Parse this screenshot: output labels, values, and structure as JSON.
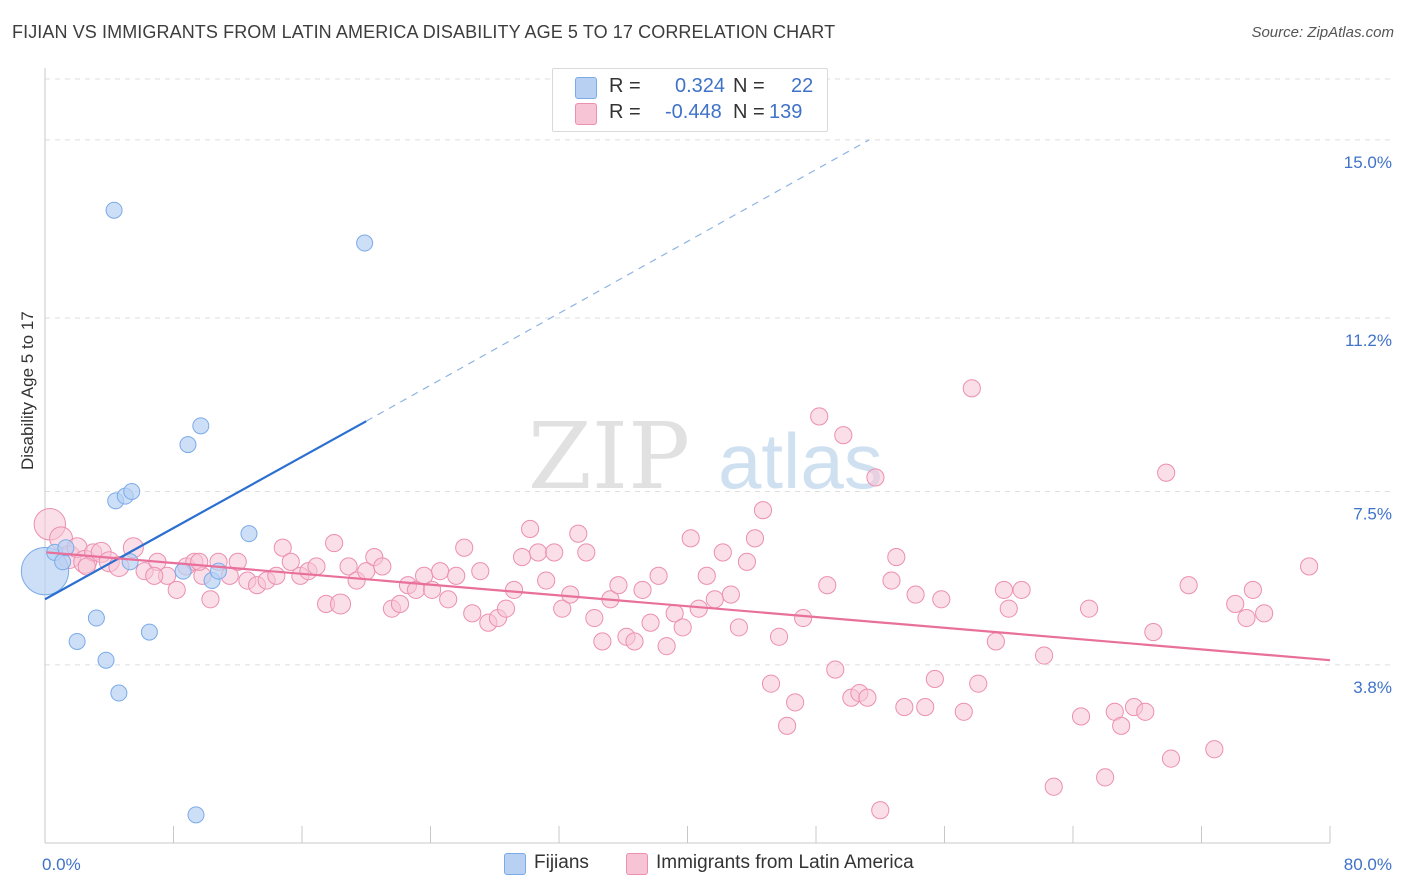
{
  "title": "FIJIAN VS IMMIGRANTS FROM LATIN AMERICA DISABILITY AGE 5 TO 17 CORRELATION CHART",
  "source": "Source: ZipAtlas.com",
  "watermark": {
    "zip": "ZIP",
    "atlas": "atlas"
  },
  "legend": {
    "r_label": "R =",
    "n_label": "N =",
    "series1": {
      "r": "0.324",
      "n": "22"
    },
    "series2": {
      "r": "-0.448",
      "n": "139"
    }
  },
  "bottom_legend": {
    "series1": "Fijians",
    "series2": "Immigrants from Latin America"
  },
  "chart_data": {
    "type": "scatter",
    "title": "FIJIAN VS IMMIGRANTS FROM LATIN AMERICA DISABILITY AGE 5 TO 17 CORRELATION CHART",
    "xlabel": "",
    "ylabel": "Disability Age 5 to 17",
    "xlim": [
      0,
      80
    ],
    "ylim": [
      0,
      16.3
    ],
    "x_tick_labels": [
      "0.0%",
      "80.0%"
    ],
    "y_ticks": [
      3.8,
      7.5,
      11.2,
      15.0
    ],
    "y_tick_labels": [
      "3.8%",
      "7.5%",
      "11.2%",
      "15.0%"
    ],
    "grid": true,
    "legend_position": "top-center",
    "colors": {
      "series1": "#7aaae8",
      "series1_fill": "#b8d1f3",
      "series1_line": "#2b6fd0",
      "series2": "#ec8fb0",
      "series2_fill": "#f7c4d6",
      "series2_line": "#e8709a",
      "tick_text": "#3f72c8"
    },
    "series": [
      {
        "name": "Fijians",
        "trend": {
          "x": [
            0,
            20.0
          ],
          "y": [
            5.2,
            9.0
          ],
          "dashed_to": [
            51.3,
            15.0
          ]
        },
        "points": [
          [
            0.0,
            5.8,
            26
          ],
          [
            0.6,
            6.2,
            10
          ],
          [
            1.1,
            6.0,
            10
          ],
          [
            1.3,
            6.3,
            10
          ],
          [
            3.2,
            4.8,
            10
          ],
          [
            2.0,
            4.3,
            10
          ],
          [
            3.8,
            3.9,
            10
          ],
          [
            4.3,
            13.5,
            10
          ],
          [
            4.4,
            7.3,
            10
          ],
          [
            4.6,
            3.2,
            10
          ],
          [
            5.0,
            7.4,
            10
          ],
          [
            5.4,
            7.5,
            10
          ],
          [
            5.3,
            6.0,
            10
          ],
          [
            6.5,
            4.5,
            10
          ],
          [
            8.6,
            5.8,
            10
          ],
          [
            8.9,
            8.5,
            10
          ],
          [
            9.4,
            0.6,
            10
          ],
          [
            9.7,
            8.9,
            10
          ],
          [
            10.4,
            5.6,
            10
          ],
          [
            10.8,
            5.8,
            10
          ],
          [
            12.7,
            6.6,
            10
          ],
          [
            19.9,
            12.8,
            10
          ]
        ]
      },
      {
        "name": "Immigrants from Latin America",
        "trend": {
          "x": [
            0.1,
            80.0
          ],
          "y": [
            6.2,
            3.9
          ]
        },
        "points": [
          [
            0.3,
            6.8,
            22
          ],
          [
            1.0,
            6.5,
            16
          ],
          [
            1.5,
            6.1,
            16
          ],
          [
            2.0,
            6.3,
            14
          ],
          [
            2.5,
            6.0,
            16
          ],
          [
            3.0,
            6.2,
            12
          ],
          [
            3.5,
            6.2,
            14
          ],
          [
            4.0,
            6.0,
            14
          ],
          [
            4.6,
            5.9,
            14
          ],
          [
            5.5,
            6.3,
            14
          ],
          [
            6.2,
            5.8,
            12
          ],
          [
            7.0,
            6.0,
            12
          ],
          [
            7.6,
            5.7,
            12
          ],
          [
            8.2,
            5.4,
            12
          ],
          [
            8.8,
            5.9,
            12
          ],
          [
            9.3,
            6.0,
            12
          ],
          [
            9.8,
            5.7,
            12
          ],
          [
            10.3,
            5.2,
            12
          ],
          [
            10.8,
            6.0,
            12
          ],
          [
            11.5,
            5.7,
            12
          ],
          [
            12.0,
            6.0,
            12
          ],
          [
            12.6,
            5.6,
            12
          ],
          [
            13.2,
            5.5,
            12
          ],
          [
            13.8,
            5.6,
            12
          ],
          [
            14.4,
            5.7,
            12
          ],
          [
            14.8,
            6.3,
            12
          ],
          [
            15.3,
            6.0,
            12
          ],
          [
            15.9,
            5.7,
            12
          ],
          [
            16.4,
            5.8,
            12
          ],
          [
            16.9,
            5.9,
            12
          ],
          [
            17.5,
            5.1,
            12
          ],
          [
            18.0,
            6.4,
            12
          ],
          [
            18.4,
            5.1,
            14
          ],
          [
            18.9,
            5.9,
            12
          ],
          [
            19.4,
            5.6,
            12
          ],
          [
            20.0,
            5.8,
            12
          ],
          [
            20.5,
            6.1,
            12
          ],
          [
            21.0,
            5.9,
            12
          ],
          [
            21.6,
            5.0,
            12
          ],
          [
            22.1,
            5.1,
            12
          ],
          [
            22.6,
            5.5,
            12
          ],
          [
            23.1,
            5.4,
            12
          ],
          [
            23.6,
            5.7,
            12
          ],
          [
            24.1,
            5.4,
            12
          ],
          [
            24.6,
            5.8,
            12
          ],
          [
            25.1,
            5.2,
            12
          ],
          [
            25.6,
            5.7,
            12
          ],
          [
            26.1,
            6.3,
            12
          ],
          [
            26.6,
            4.9,
            12
          ],
          [
            27.1,
            5.8,
            12
          ],
          [
            27.6,
            4.7,
            12
          ],
          [
            28.2,
            4.8,
            12
          ],
          [
            28.7,
            5.0,
            12
          ],
          [
            29.2,
            5.4,
            12
          ],
          [
            29.7,
            6.1,
            12
          ],
          [
            30.2,
            6.7,
            12
          ],
          [
            30.7,
            6.2,
            12
          ],
          [
            31.2,
            5.6,
            12
          ],
          [
            31.7,
            6.2,
            12
          ],
          [
            32.2,
            5.0,
            12
          ],
          [
            32.7,
            5.3,
            12
          ],
          [
            33.2,
            6.6,
            12
          ],
          [
            33.7,
            6.2,
            12
          ],
          [
            34.2,
            4.8,
            12
          ],
          [
            34.7,
            4.3,
            12
          ],
          [
            35.2,
            5.2,
            12
          ],
          [
            35.7,
            5.5,
            12
          ],
          [
            36.2,
            4.4,
            12
          ],
          [
            36.7,
            4.3,
            12
          ],
          [
            37.2,
            5.4,
            12
          ],
          [
            37.7,
            4.7,
            12
          ],
          [
            38.2,
            5.7,
            12
          ],
          [
            38.7,
            4.2,
            12
          ],
          [
            39.2,
            4.9,
            12
          ],
          [
            39.7,
            4.6,
            12
          ],
          [
            40.2,
            6.5,
            12
          ],
          [
            40.7,
            5.0,
            12
          ],
          [
            41.2,
            5.7,
            12
          ],
          [
            41.7,
            5.2,
            12
          ],
          [
            42.2,
            6.2,
            12
          ],
          [
            42.7,
            5.3,
            12
          ],
          [
            43.2,
            4.6,
            12
          ],
          [
            43.7,
            6.0,
            12
          ],
          [
            44.2,
            6.5,
            12
          ],
          [
            44.7,
            7.1,
            12
          ],
          [
            45.2,
            3.4,
            12
          ],
          [
            45.7,
            4.4,
            12
          ],
          [
            46.2,
            2.5,
            12
          ],
          [
            46.7,
            3.0,
            12
          ],
          [
            47.2,
            4.8,
            12
          ],
          [
            48.2,
            9.1,
            12
          ],
          [
            48.7,
            5.5,
            12
          ],
          [
            49.2,
            3.7,
            12
          ],
          [
            49.7,
            8.7,
            12
          ],
          [
            50.2,
            3.1,
            12
          ],
          [
            50.7,
            3.2,
            12
          ],
          [
            51.2,
            3.1,
            12
          ],
          [
            51.7,
            7.8,
            12
          ],
          [
            52.0,
            0.7,
            12
          ],
          [
            52.7,
            5.6,
            12
          ],
          [
            53.0,
            6.1,
            12
          ],
          [
            53.5,
            2.9,
            12
          ],
          [
            54.2,
            5.3,
            12
          ],
          [
            54.8,
            2.9,
            12
          ],
          [
            55.4,
            3.5,
            12
          ],
          [
            55.8,
            5.2,
            12
          ],
          [
            57.2,
            2.8,
            12
          ],
          [
            57.7,
            9.7,
            12
          ],
          [
            58.1,
            3.4,
            12
          ],
          [
            59.2,
            4.3,
            12
          ],
          [
            59.7,
            5.4,
            12
          ],
          [
            60.0,
            5.0,
            12
          ],
          [
            60.8,
            5.4,
            12
          ],
          [
            62.2,
            4.0,
            12
          ],
          [
            62.8,
            1.2,
            12
          ],
          [
            64.5,
            2.7,
            12
          ],
          [
            65.0,
            5.0,
            12
          ],
          [
            66.0,
            1.4,
            12
          ],
          [
            66.6,
            2.8,
            12
          ],
          [
            67.0,
            2.5,
            12
          ],
          [
            67.8,
            2.9,
            12
          ],
          [
            68.5,
            2.8,
            12
          ],
          [
            69.0,
            4.5,
            12
          ],
          [
            69.8,
            7.9,
            12
          ],
          [
            70.1,
            1.8,
            12
          ],
          [
            71.2,
            5.5,
            12
          ],
          [
            72.8,
            2.0,
            12
          ],
          [
            74.1,
            5.1,
            12
          ],
          [
            74.8,
            4.8,
            12
          ],
          [
            75.2,
            5.4,
            12
          ],
          [
            75.9,
            4.9,
            12
          ],
          [
            78.7,
            5.9,
            12
          ],
          [
            2.6,
            5.9,
            12
          ],
          [
            6.8,
            5.7,
            12
          ],
          [
            9.6,
            6.0,
            12
          ]
        ]
      }
    ]
  }
}
